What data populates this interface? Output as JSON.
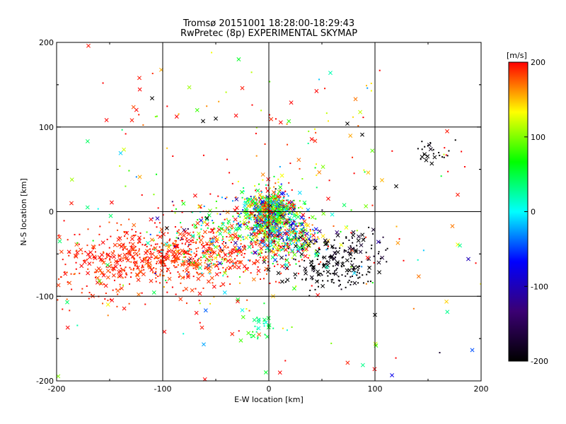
{
  "chart_data": {
    "type": "scatter",
    "title": "Tromsø 20151001 18:28:00-18:29:43",
    "subtitle": "RwPretec (8p) EXPERIMENTAL SKYMAP",
    "xlabel": "E-W location [km]",
    "ylabel": "N-S location [km]",
    "xlim": [
      -200,
      200
    ],
    "ylim": [
      -200,
      200
    ],
    "xticks": [
      "-200",
      "-100",
      "0",
      "100",
      "200"
    ],
    "yticks": [
      "-200",
      "-100",
      "0",
      "100",
      "200"
    ],
    "grid": true,
    "markers": [
      "x",
      "dot"
    ],
    "colorbar": {
      "label": "[m/s]",
      "range": [
        -200,
        200
      ],
      "ticks": [
        "200",
        "100",
        "0",
        "-100",
        "-200"
      ],
      "colormap": [
        "#000000",
        "#3b0073",
        "#0000ff",
        "#00ffff",
        "#00ff00",
        "#ffff00",
        "#ff0000"
      ]
    },
    "clusters": [
      {
        "name": "center",
        "cx": 2,
        "cy": 0,
        "sx": 12,
        "sy": 12,
        "n": 700,
        "v_mean": 60,
        "v_sd": 110
      },
      {
        "name": "core-south",
        "cx": 15,
        "cy": -30,
        "sx": 18,
        "sy": 14,
        "n": 350,
        "v_mean": 60,
        "v_sd": 120
      },
      {
        "name": "west-band",
        "cx": -100,
        "cy": -55,
        "sx": 55,
        "sy": 17,
        "n": 650,
        "v_mean": 190,
        "v_sd": 10
      },
      {
        "name": "southwest",
        "cx": -150,
        "cy": -90,
        "sx": 35,
        "sy": 15,
        "n": 60,
        "v_mean": 190,
        "v_sd": 10
      },
      {
        "name": "southeast-black",
        "cx": 55,
        "cy": -70,
        "sx": 25,
        "sy": 12,
        "n": 120,
        "v_mean": -200,
        "v_sd": 8
      },
      {
        "name": "east-arm",
        "cx": 70,
        "cy": -45,
        "sx": 22,
        "sy": 12,
        "n": 100,
        "v_mean": -195,
        "v_sd": 15
      },
      {
        "name": "northeast-black",
        "cx": 153,
        "cy": 72,
        "sx": 8,
        "sy": 7,
        "n": 25,
        "v_mean": -200,
        "v_sd": 5
      },
      {
        "name": "middle-mixed",
        "cx": -50,
        "cy": -30,
        "sx": 30,
        "sy": 22,
        "n": 300,
        "v_mean": 110,
        "v_sd": 140
      },
      {
        "name": "south-cyan",
        "cx": -10,
        "cy": -135,
        "sx": 8,
        "sy": 10,
        "n": 30,
        "v_mean": 40,
        "v_sd": 20
      },
      {
        "name": "scatter-north",
        "cx": 0,
        "cy": 80,
        "sx": 100,
        "sy": 60,
        "n": 120,
        "v_mean": 170,
        "v_sd": 80
      },
      {
        "name": "scatter-wide",
        "cx": 0,
        "cy": -60,
        "sx": 130,
        "sy": 80,
        "n": 160,
        "v_mean": 150,
        "v_sd": 120
      }
    ],
    "sample_points": [
      {
        "x": -170,
        "y": 196,
        "v": 195,
        "m": "x"
      },
      {
        "x": -122,
        "y": 158,
        "v": 195,
        "m": "x"
      },
      {
        "x": -110,
        "y": 134,
        "v": -200,
        "m": "x"
      },
      {
        "x": 58,
        "y": 164,
        "v": 20,
        "m": "x"
      },
      {
        "x": -129,
        "y": 108,
        "v": 195,
        "m": "x"
      },
      {
        "x": 74,
        "y": 104,
        "v": -200,
        "m": "x"
      },
      {
        "x": 88,
        "y": 91,
        "v": -200,
        "m": "x"
      },
      {
        "x": -62,
        "y": 107,
        "v": -200,
        "m": "x"
      },
      {
        "x": -50,
        "y": 110,
        "v": -200,
        "m": "x"
      },
      {
        "x": -25,
        "y": 146,
        "v": 195,
        "m": "x"
      },
      {
        "x": -186,
        "y": 10,
        "v": 195,
        "m": "x"
      },
      {
        "x": -190,
        "y": -107,
        "v": 40,
        "m": "x"
      },
      {
        "x": -149,
        "y": -5,
        "v": 40,
        "m": "x"
      },
      {
        "x": -197,
        "y": -35,
        "v": 40,
        "m": "x"
      },
      {
        "x": 100,
        "y": -122,
        "v": -200,
        "m": "x"
      },
      {
        "x": 180,
        "y": -40,
        "v": 30,
        "m": "x"
      },
      {
        "x": 188,
        "y": -56,
        "v": -100,
        "m": "x"
      },
      {
        "x": 178,
        "y": 20,
        "v": 195,
        "m": "x"
      },
      {
        "x": 120,
        "y": 30,
        "v": -200,
        "m": "x"
      },
      {
        "x": 100,
        "y": 28,
        "v": -200,
        "m": "x"
      },
      {
        "x": -105,
        "y": -8,
        "v": -100,
        "m": "x"
      },
      {
        "x": -63,
        "y": -137,
        "v": 195,
        "m": "x"
      },
      {
        "x": 168,
        "y": 95,
        "v": 195,
        "m": "x"
      }
    ]
  }
}
